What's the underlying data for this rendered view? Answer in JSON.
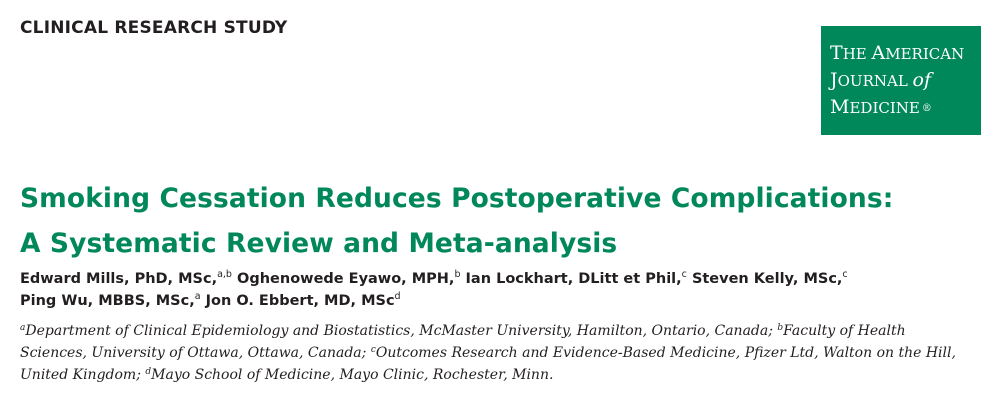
{
  "header": {
    "section_label": "CLINICAL RESEARCH STUDY"
  },
  "journal_logo": {
    "line1_initial": "T",
    "line1_rest": "HE ",
    "line1_initial2": "A",
    "line1_rest2": "MERICAN",
    "line2_initial": "J",
    "line2_rest": "OURNAL ",
    "line2_of": "of",
    "line3_initial": "M",
    "line3_rest": "EDICINE",
    "line3_mark": "®"
  },
  "article": {
    "title_line1": "Smoking Cessation Reduces Postoperative Complications:",
    "title_line2": "A Systematic Review and Meta-analysis"
  },
  "authors": [
    {
      "name": "Edward Mills, PhD, MSc,",
      "sup": "a,b",
      "tail": " "
    },
    {
      "name": "Oghenowede Eyawo, MPH,",
      "sup": "b",
      "tail": " "
    },
    {
      "name": "Ian Lockhart, DLitt et Phil,",
      "sup": "c",
      "tail": " "
    },
    {
      "name": "Steven Kelly, MSc,",
      "sup": "c",
      "tail": ""
    },
    {
      "name": "Ping Wu, MBBS, MSc,",
      "sup": "a",
      "tail": " "
    },
    {
      "name": "Jon O. Ebbert, MD, MSc",
      "sup": "d",
      "tail": ""
    }
  ],
  "affiliations": {
    "line1_sup_a": "a",
    "line1_text_a": "Department of Clinical Epidemiology and Biostatistics, McMaster University, Hamilton, Ontario, Canada; ",
    "line1_sup_b": "b",
    "line1_text_b": "Faculty of Health",
    "line2_text_a": "Sciences, University of Ottawa, Ottawa, Canada; ",
    "line2_sup_c": "c",
    "line2_text_b": "Outcomes Research and Evidence-Based Medicine, Pfizer Ltd, Walton on the Hill,",
    "line3_text_a": "United Kingdom; ",
    "line3_sup_d": "d",
    "line3_text_b": "Mayo School of Medicine, Mayo Clinic, Rochester, Minn."
  },
  "colors": {
    "accent_green": "#00875a",
    "text_dark": "#231f20"
  }
}
